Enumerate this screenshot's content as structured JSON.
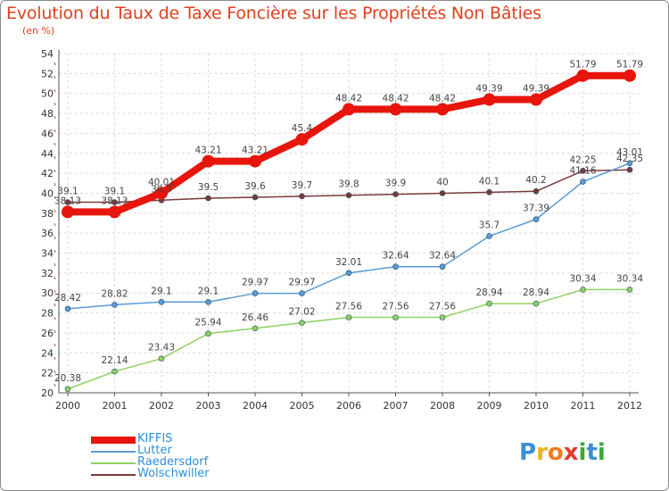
{
  "title": "Evolution du Taux de Taxe Foncière sur les Propriétés Non Bâties",
  "subtitle": "(en %)",
  "logo": {
    "letters": [
      "P",
      "r",
      "o",
      "x",
      "i",
      "t",
      "i"
    ],
    "colors": [
      "#3a8fd6",
      "#f0b020",
      "#ee7d22",
      "#e23a2a",
      "#3aaa35",
      "#3a8fd6",
      "#3aaa35"
    ]
  },
  "chart_data": {
    "type": "line",
    "title": "Evolution du Taux de Taxe Foncière sur les Propriétés Non Bâties",
    "ylabel": "(en %)",
    "xlabel": "",
    "ylim": [
      20,
      54
    ],
    "yticks": [
      20,
      22,
      24,
      26,
      28,
      30,
      32,
      34,
      36,
      38,
      40,
      42,
      44,
      46,
      48,
      50,
      52,
      54
    ],
    "x": [
      "2000",
      "2001",
      "2002",
      "2003",
      "2004",
      "2005",
      "2006",
      "2007",
      "2008",
      "2009",
      "2010",
      "2011",
      "2012"
    ],
    "grid": true,
    "legend_position": "bottom-left",
    "series": [
      {
        "name": "KIFFIS",
        "color": "#e8150c",
        "values": [
          38.13,
          38.13,
          40.01,
          43.21,
          43.21,
          45.4,
          48.42,
          48.42,
          48.42,
          49.39,
          49.39,
          51.79,
          51.79
        ],
        "labels": [
          "38.13",
          "38.13",
          "40.01",
          "43.21",
          "43.21",
          "45.4",
          "48.42",
          "48.42",
          "48.42",
          "49.39",
          "49.39",
          "51.79",
          "51.79"
        ]
      },
      {
        "name": "Lutter",
        "color": "#5b9bd5",
        "values": [
          28.42,
          28.82,
          29.1,
          29.1,
          29.97,
          29.97,
          32.01,
          32.64,
          32.64,
          35.7,
          37.39,
          41.16,
          43.01
        ],
        "labels": [
          "28.42",
          "28.82",
          "29.1",
          "29.1",
          "29.97",
          "29.97",
          "32.01",
          "32.64",
          "32.64",
          "35.7",
          "37.39",
          "41.16",
          "43.01"
        ]
      },
      {
        "name": "Raedersdorf",
        "color": "#8fd15e",
        "values": [
          20.38,
          22.14,
          23.43,
          25.94,
          26.46,
          27.02,
          27.56,
          27.56,
          27.56,
          28.94,
          28.94,
          30.34,
          30.34
        ],
        "labels": [
          "20.38",
          "22.14",
          "23.43",
          "25.94",
          "26.46",
          "27.02",
          "27.56",
          "27.56",
          "27.56",
          "28.94",
          "28.94",
          "30.34",
          "30.34"
        ]
      },
      {
        "name": "Wolschwiller",
        "color": "#7a3b3b",
        "values": [
          39.1,
          39.1,
          39.3,
          39.5,
          39.6,
          39.7,
          39.8,
          39.9,
          40,
          40.1,
          40.2,
          42.25,
          42.35
        ],
        "labels": [
          "39.1",
          "39.1",
          "39.3",
          "39.5",
          "39.6",
          "39.7",
          "39.8",
          "39.9",
          "40",
          "40.1",
          "40.2",
          "42.25",
          "42.35"
        ]
      }
    ]
  }
}
